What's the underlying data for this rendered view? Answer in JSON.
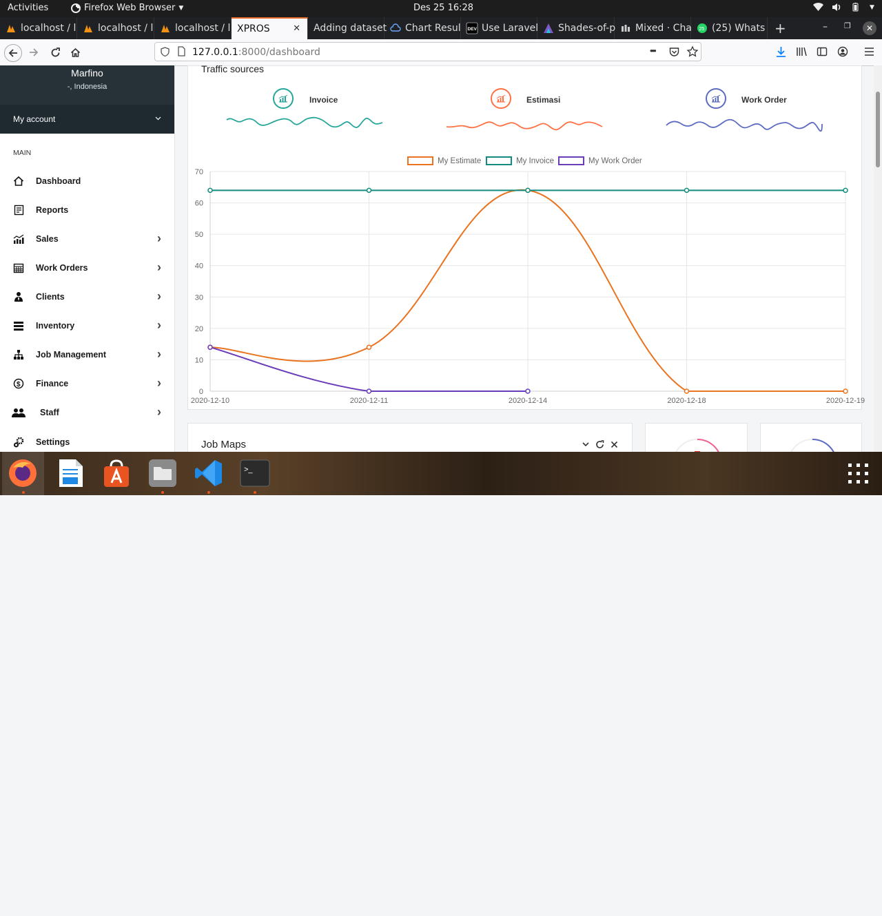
{
  "topbar": {
    "activities": "Activities",
    "app_menu": "Firefox Web Browser",
    "clock": "Des 25  16:28"
  },
  "tabs": [
    {
      "label": "localhost / l",
      "icon": "phpmyadmin-icon"
    },
    {
      "label": "localhost / l",
      "icon": "phpmyadmin-icon"
    },
    {
      "label": "localhost / l",
      "icon": "phpmyadmin-icon"
    },
    {
      "label": "XPROS",
      "icon": "none",
      "active": true
    },
    {
      "label": "Adding dataset",
      "icon": "none"
    },
    {
      "label": "Chart Resul",
      "icon": "cloud-icon"
    },
    {
      "label": "Use Laravel",
      "icon": "dev-icon"
    },
    {
      "label": "Shades-of-p",
      "icon": "palette-icon"
    },
    {
      "label": "Mixed · Cha",
      "icon": "chart-icon"
    },
    {
      "label": "(25) Whats",
      "icon": "whatsapp-icon"
    }
  ],
  "browser": {
    "url_host": "127.0.0.1",
    "url_rest": ":8000/dashboard",
    "page_actions": "•••"
  },
  "sidebar": {
    "user_name": "Marfino",
    "user_location": "-, Indonesia",
    "account_label": "My account",
    "section_label": "MAIN",
    "items": [
      {
        "label": "Dashboard",
        "icon": "home-icon",
        "has_submenu": false
      },
      {
        "label": "Reports",
        "icon": "report-icon",
        "has_submenu": false
      },
      {
        "label": "Sales",
        "icon": "sales-chart-icon",
        "has_submenu": true
      },
      {
        "label": "Work Orders",
        "icon": "calendar-icon",
        "has_submenu": true
      },
      {
        "label": "Clients",
        "icon": "user-tie-icon",
        "has_submenu": true
      },
      {
        "label": "Inventory",
        "icon": "warehouse-icon",
        "has_submenu": true
      },
      {
        "label": "Job Management",
        "icon": "sitemap-icon",
        "has_submenu": true
      },
      {
        "label": "Finance",
        "icon": "dollar-icon",
        "has_submenu": true
      },
      {
        "label": "Staff",
        "icon": "users-icon",
        "has_submenu": true
      },
      {
        "label": "Settings",
        "icon": "cogs-icon",
        "has_submenu": false
      }
    ]
  },
  "traffic": {
    "title": "Traffic sources",
    "sources": [
      {
        "label": "Invoice",
        "color": "#26a69a"
      },
      {
        "label": "Estimasi",
        "color": "#ff7043"
      },
      {
        "label": "Work Order",
        "color": "#5c6bc0"
      }
    ]
  },
  "chart_data": {
    "type": "line",
    "categories": [
      "2020-12-10",
      "2020-12-11",
      "2020-12-14",
      "2020-12-18",
      "2020-12-19"
    ],
    "series": [
      {
        "name": "My Estimate",
        "color": "#e9731f",
        "values": [
          14,
          14,
          64,
          0,
          0
        ]
      },
      {
        "name": "My Invoice",
        "color": "#138b7f",
        "values": [
          64,
          64,
          64,
          64,
          64
        ]
      },
      {
        "name": "My Work Order",
        "color": "#6a3db8",
        "values": [
          14,
          0,
          0,
          null,
          null
        ]
      }
    ],
    "ylim": [
      0,
      70
    ],
    "yticks": [
      0,
      10,
      20,
      30,
      40,
      50,
      60,
      70
    ],
    "legend": "top-center",
    "grid": true
  },
  "jobmaps": {
    "title": "Job Maps"
  },
  "dock": {
    "apps": [
      {
        "name": "firefox",
        "running": true
      },
      {
        "name": "libreoffice-writer",
        "running": false
      },
      {
        "name": "ubuntu-software",
        "running": false
      },
      {
        "name": "files",
        "running": true
      },
      {
        "name": "vscode",
        "running": true
      },
      {
        "name": "terminal",
        "running": true
      }
    ]
  }
}
